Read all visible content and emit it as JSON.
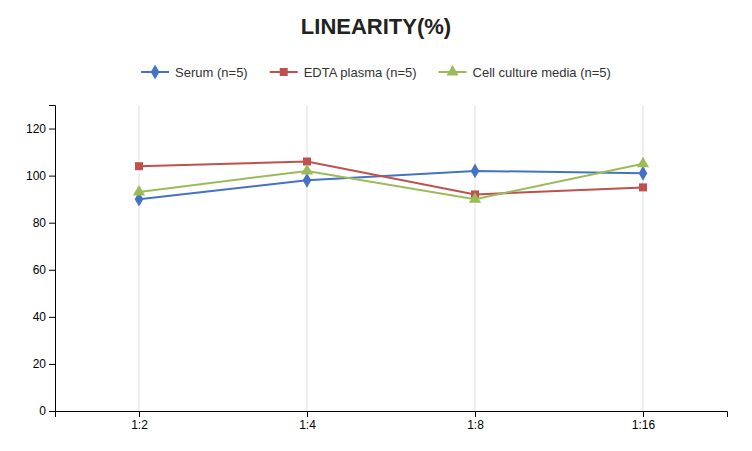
{
  "chart_data": {
    "type": "line",
    "title": "LINEARITY(%)",
    "categories": [
      "1:2",
      "1:4",
      "1:8",
      "1:16"
    ],
    "series": [
      {
        "name": "Serum (n=5)",
        "color": "#4472C4",
        "marker": "diamond",
        "values": [
          90,
          98,
          102,
          101
        ]
      },
      {
        "name": "EDTA plasma (n=5)",
        "color": "#C0504D",
        "marker": "square",
        "values": [
          104,
          106,
          92,
          95
        ]
      },
      {
        "name": "Cell culture media (n=5)",
        "color": "#9BBB59",
        "marker": "triangle",
        "values": [
          93,
          102,
          90,
          105
        ]
      }
    ],
    "ylim": [
      0,
      130
    ],
    "yticks": [
      0,
      20,
      40,
      60,
      80,
      100,
      120
    ],
    "grid": "x",
    "legend": "top"
  }
}
